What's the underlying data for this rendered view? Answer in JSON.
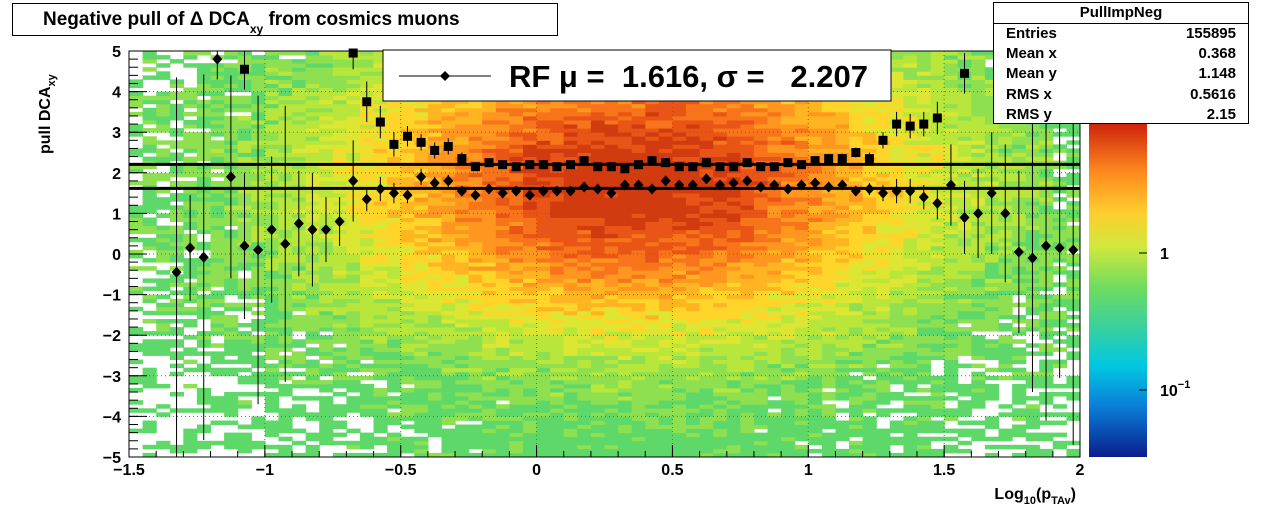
{
  "title": {
    "prefix": "Negative pull of Δ DCA",
    "sub": "xy",
    "suffix": " from cosmics muons"
  },
  "stats": {
    "name": "PullImpNeg",
    "rows": [
      {
        "label": "Entries",
        "value": "155895"
      },
      {
        "label": "Mean x",
        "value": "0.368"
      },
      {
        "label": "Mean y",
        "value": "1.148"
      },
      {
        "label": "RMS x",
        "value": "0.5616"
      },
      {
        "label": "RMS y",
        "value": "2.15"
      }
    ]
  },
  "legend": {
    "text": "RF μ =  1.616, σ =   2.207"
  },
  "colors": {
    "marker": "#000000",
    "frame": "#000000"
  },
  "chart_data": {
    "type": "heatmap",
    "xlabel": "Log10(pTAv)",
    "ylabel": "pull DCAxy",
    "xlim": [
      -1.5,
      2
    ],
    "ylim": [
      -5,
      5
    ],
    "x_ticks": [
      "−1.5",
      "−1",
      "−0.5",
      "0",
      "0.5",
      "1",
      "1.5",
      "2"
    ],
    "y_ticks": [
      "−5",
      "−4",
      "−3",
      "−2",
      "−1",
      "0",
      "1",
      "2",
      "3",
      "4",
      "5"
    ],
    "colorbar": {
      "scale": "log",
      "ticks": [
        {
          "label": "1",
          "value": 1
        },
        {
          "label": "10",
          "exp": "−1",
          "value": 0.1
        }
      ]
    },
    "grid": true,
    "horizontal_lines": [
      1.616,
      2.207
    ],
    "series": [
      {
        "name": "RF",
        "marker": "diamond",
        "points": [
          {
            "x": -1.325,
            "y": -0.45,
            "err": 4.8
          },
          {
            "x": -1.275,
            "y": 0.15,
            "err": 1.3
          },
          {
            "x": -1.225,
            "y": -0.08,
            "err": 4.5
          },
          {
            "x": -1.175,
            "y": 4.8,
            "err": 0.5
          },
          {
            "x": -1.125,
            "y": 1.9,
            "err": 2.5
          },
          {
            "x": -1.075,
            "y": 0.2,
            "err": 1.8
          },
          {
            "x": -1.025,
            "y": 0.1,
            "err": 3.8
          },
          {
            "x": -0.975,
            "y": 0.6,
            "err": 1.8
          },
          {
            "x": -0.925,
            "y": 0.25,
            "err": 3.4
          },
          {
            "x": -0.875,
            "y": 0.75,
            "err": 1.3
          },
          {
            "x": -0.825,
            "y": 0.6,
            "err": 1.4
          },
          {
            "x": -0.775,
            "y": 0.6,
            "err": 0.8
          },
          {
            "x": -0.725,
            "y": 0.8,
            "err": 0.6
          },
          {
            "x": -0.675,
            "y": 1.8,
            "err": 1.0
          },
          {
            "x": -0.625,
            "y": 1.35,
            "err": 0.3
          },
          {
            "x": -0.575,
            "y": 1.6,
            "err": 0.3
          },
          {
            "x": -0.525,
            "y": 1.5,
            "err": 0.25
          },
          {
            "x": -0.475,
            "y": 1.45,
            "err": 0.2
          },
          {
            "x": -0.425,
            "y": 1.9,
            "err": 0.2
          },
          {
            "x": -0.375,
            "y": 1.75,
            "err": 0.15
          },
          {
            "x": -0.325,
            "y": 1.8,
            "err": 0.15
          },
          {
            "x": -0.275,
            "y": 1.55,
            "err": 0.12
          },
          {
            "x": -0.225,
            "y": 1.45,
            "err": 0.1
          },
          {
            "x": -0.175,
            "y": 1.6,
            "err": 0.1
          },
          {
            "x": -0.125,
            "y": 1.5,
            "err": 0.1
          },
          {
            "x": -0.075,
            "y": 1.55,
            "err": 0.1
          },
          {
            "x": -0.025,
            "y": 1.45,
            "err": 0.1
          },
          {
            "x": 0.025,
            "y": 1.55,
            "err": 0.1
          },
          {
            "x": 0.075,
            "y": 1.55,
            "err": 0.1
          },
          {
            "x": 0.125,
            "y": 1.55,
            "err": 0.1
          },
          {
            "x": 0.175,
            "y": 1.65,
            "err": 0.1
          },
          {
            "x": 0.225,
            "y": 1.6,
            "err": 0.1
          },
          {
            "x": 0.275,
            "y": 1.5,
            "err": 0.1
          },
          {
            "x": 0.325,
            "y": 1.7,
            "err": 0.1
          },
          {
            "x": 0.375,
            "y": 1.7,
            "err": 0.1
          },
          {
            "x": 0.425,
            "y": 1.6,
            "err": 0.1
          },
          {
            "x": 0.475,
            "y": 1.8,
            "err": 0.1
          },
          {
            "x": 0.525,
            "y": 1.7,
            "err": 0.1
          },
          {
            "x": 0.575,
            "y": 1.7,
            "err": 0.1
          },
          {
            "x": 0.625,
            "y": 1.85,
            "err": 0.1
          },
          {
            "x": 0.675,
            "y": 1.7,
            "err": 0.1
          },
          {
            "x": 0.725,
            "y": 1.75,
            "err": 0.1
          },
          {
            "x": 0.775,
            "y": 1.8,
            "err": 0.1
          },
          {
            "x": 0.825,
            "y": 1.65,
            "err": 0.1
          },
          {
            "x": 0.875,
            "y": 1.7,
            "err": 0.1
          },
          {
            "x": 0.925,
            "y": 1.6,
            "err": 0.1
          },
          {
            "x": 0.975,
            "y": 1.7,
            "err": 0.1
          },
          {
            "x": 1.025,
            "y": 1.75,
            "err": 0.1
          },
          {
            "x": 1.075,
            "y": 1.65,
            "err": 0.1
          },
          {
            "x": 1.125,
            "y": 1.7,
            "err": 0.12
          },
          {
            "x": 1.175,
            "y": 1.55,
            "err": 0.12
          },
          {
            "x": 1.225,
            "y": 1.6,
            "err": 0.15
          },
          {
            "x": 1.275,
            "y": 1.5,
            "err": 0.2
          },
          {
            "x": 1.325,
            "y": 1.55,
            "err": 0.3
          },
          {
            "x": 1.375,
            "y": 1.55,
            "err": 0.3
          },
          {
            "x": 1.425,
            "y": 1.4,
            "err": 0.3
          },
          {
            "x": 1.475,
            "y": 1.25,
            "err": 0.4
          },
          {
            "x": 1.525,
            "y": 1.7,
            "err": 1.0
          },
          {
            "x": 1.575,
            "y": 0.9,
            "err": 0.9
          },
          {
            "x": 1.625,
            "y": 1.0,
            "err": 1.1
          },
          {
            "x": 1.675,
            "y": 1.5,
            "err": 1.5
          },
          {
            "x": 1.725,
            "y": 1.0,
            "err": 1.7
          },
          {
            "x": 1.775,
            "y": 0.05,
            "err": 2.0
          },
          {
            "x": 1.825,
            "y": -0.1,
            "err": 3.3
          },
          {
            "x": 1.875,
            "y": 0.2,
            "err": 4.3
          },
          {
            "x": 1.925,
            "y": 0.15,
            "err": 3.2
          },
          {
            "x": 1.975,
            "y": 0.1,
            "err": 4.8
          }
        ]
      },
      {
        "name": "",
        "marker": "square",
        "points": [
          {
            "x": -1.075,
            "y": 4.55,
            "err": 0.5
          },
          {
            "x": -0.675,
            "y": 4.95,
            "err": 0.4
          },
          {
            "x": -0.625,
            "y": 3.75,
            "err": 0.5
          },
          {
            "x": -0.575,
            "y": 3.25,
            "err": 0.4
          },
          {
            "x": -0.525,
            "y": 2.7,
            "err": 0.3
          },
          {
            "x": -0.475,
            "y": 2.9,
            "err": 0.25
          },
          {
            "x": -0.425,
            "y": 2.75,
            "err": 0.2
          },
          {
            "x": -0.375,
            "y": 2.55,
            "err": 0.2
          },
          {
            "x": -0.325,
            "y": 2.65,
            "err": 0.2
          },
          {
            "x": -0.275,
            "y": 2.35,
            "err": 0.15
          },
          {
            "x": -0.225,
            "y": 2.15,
            "err": 0.1
          },
          {
            "x": -0.175,
            "y": 2.25,
            "err": 0.1
          },
          {
            "x": -0.125,
            "y": 2.2,
            "err": 0.1
          },
          {
            "x": -0.075,
            "y": 2.15,
            "err": 0.1
          },
          {
            "x": -0.025,
            "y": 2.2,
            "err": 0.1
          },
          {
            "x": 0.025,
            "y": 2.2,
            "err": 0.1
          },
          {
            "x": 0.075,
            "y": 2.15,
            "err": 0.1
          },
          {
            "x": 0.125,
            "y": 2.2,
            "err": 0.1
          },
          {
            "x": 0.175,
            "y": 2.3,
            "err": 0.1
          },
          {
            "x": 0.225,
            "y": 2.15,
            "err": 0.1
          },
          {
            "x": 0.275,
            "y": 2.15,
            "err": 0.1
          },
          {
            "x": 0.325,
            "y": 2.1,
            "err": 0.1
          },
          {
            "x": 0.375,
            "y": 2.2,
            "err": 0.1
          },
          {
            "x": 0.425,
            "y": 2.3,
            "err": 0.1
          },
          {
            "x": 0.475,
            "y": 2.25,
            "err": 0.1
          },
          {
            "x": 0.525,
            "y": 2.15,
            "err": 0.1
          },
          {
            "x": 0.575,
            "y": 2.15,
            "err": 0.1
          },
          {
            "x": 0.625,
            "y": 2.25,
            "err": 0.1
          },
          {
            "x": 0.675,
            "y": 2.15,
            "err": 0.1
          },
          {
            "x": 0.725,
            "y": 2.15,
            "err": 0.1
          },
          {
            "x": 0.775,
            "y": 2.25,
            "err": 0.1
          },
          {
            "x": 0.825,
            "y": 2.15,
            "err": 0.1
          },
          {
            "x": 0.875,
            "y": 2.15,
            "err": 0.1
          },
          {
            "x": 0.925,
            "y": 2.25,
            "err": 0.1
          },
          {
            "x": 0.975,
            "y": 2.2,
            "err": 0.1
          },
          {
            "x": 1.025,
            "y": 2.3,
            "err": 0.1
          },
          {
            "x": 1.075,
            "y": 2.35,
            "err": 0.1
          },
          {
            "x": 1.125,
            "y": 2.35,
            "err": 0.12
          },
          {
            "x": 1.175,
            "y": 2.5,
            "err": 0.12
          },
          {
            "x": 1.225,
            "y": 2.35,
            "err": 0.15
          },
          {
            "x": 1.275,
            "y": 2.8,
            "err": 0.2
          },
          {
            "x": 1.325,
            "y": 3.2,
            "err": 0.3
          },
          {
            "x": 1.375,
            "y": 3.15,
            "err": 0.3
          },
          {
            "x": 1.425,
            "y": 3.2,
            "err": 0.3
          },
          {
            "x": 1.475,
            "y": 3.35,
            "err": 0.4
          },
          {
            "x": 1.575,
            "y": 4.45,
            "err": 0.5
          }
        ]
      }
    ]
  }
}
